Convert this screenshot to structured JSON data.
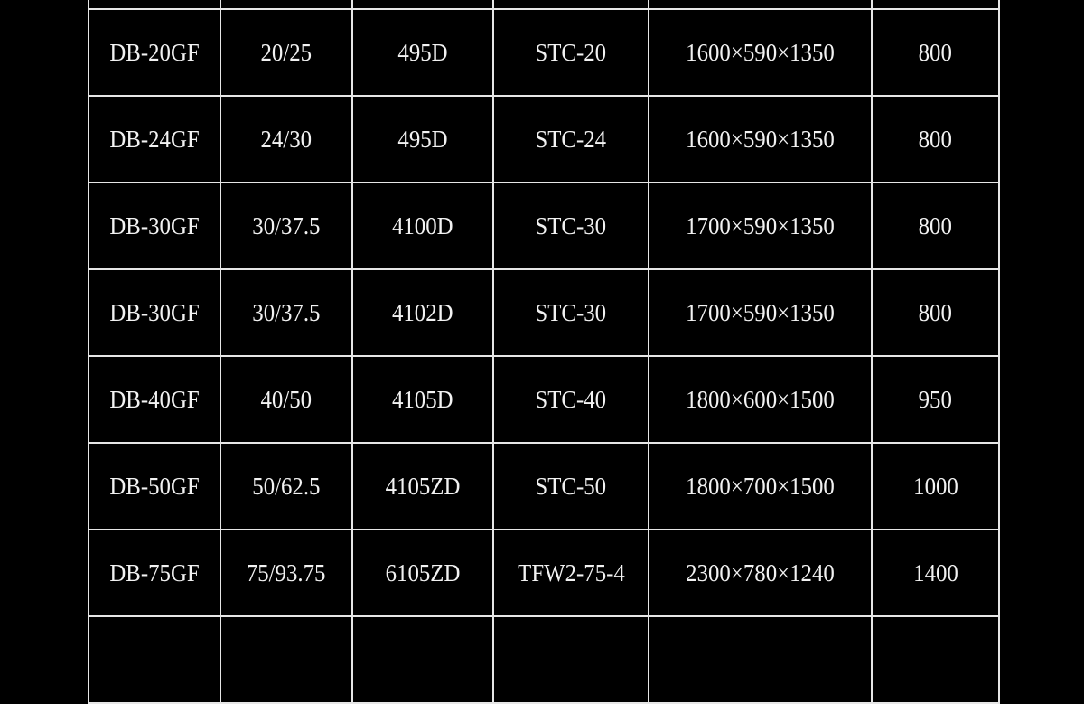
{
  "table": {
    "rows": [
      [
        "DB-20GF",
        "20/25",
        "495D",
        "STC-20",
        "1600×590×1350",
        "800"
      ],
      [
        "DB-24GF",
        "24/30",
        "495D",
        "STC-24",
        "1600×590×1350",
        "800"
      ],
      [
        "DB-30GF",
        "30/37.5",
        "4100D",
        "STC-30",
        "1700×590×1350",
        "800"
      ],
      [
        "DB-30GF",
        "30/37.5",
        "4102D",
        "STC-30",
        "1700×590×1350",
        "800"
      ],
      [
        "DB-40GF",
        "40/50",
        "4105D",
        "STC-40",
        "1800×600×1500",
        "950"
      ],
      [
        "DB-50GF",
        "50/62.5",
        "4105ZD",
        "STC-50",
        "1800×700×1500",
        "1000"
      ],
      [
        "DB-75GF",
        "75/93.75",
        "6105ZD",
        "TFW2-75-4",
        "2300×780×1240",
        "1400"
      ]
    ]
  }
}
